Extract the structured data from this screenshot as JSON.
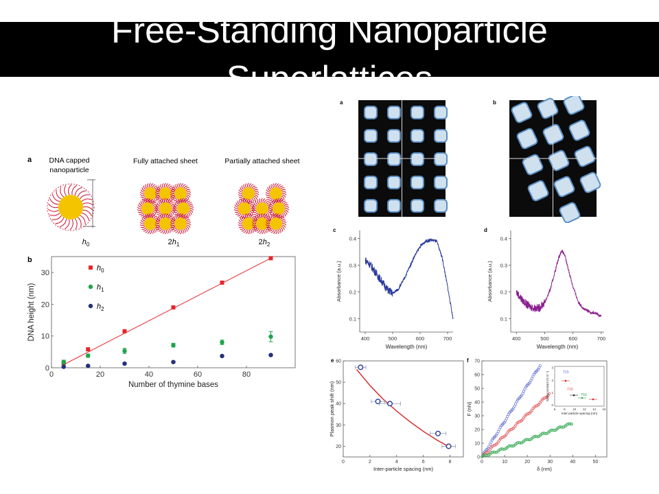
{
  "slide": {
    "title": "Free-Standing Nanoparticle\nSuperlattices"
  },
  "panel_a": {
    "letter": "a",
    "labels": [
      "DNA capped\nnanoparticle",
      "Fully attached sheet",
      "Partially attached sheet"
    ],
    "dims": [
      "h0",
      "2h1",
      "2h2"
    ]
  },
  "colors": {
    "gold": "#f5c400",
    "dna": "#c8102e",
    "red": "#e8262b",
    "green": "#1fa34a",
    "navy": "#24307a",
    "blue_spec": "#2b3a9a",
    "purple_spec": "#8a1f8f"
  },
  "chart_data": [
    {
      "panel": "b",
      "type": "scatter",
      "xlabel": "Number of thymine bases",
      "ylabel": "DNA height (nm)",
      "xlim": [
        0,
        100
      ],
      "ylim": [
        0,
        35
      ],
      "xticks": [
        0,
        20,
        40,
        60,
        80
      ],
      "yticks": [
        0,
        10,
        20,
        30
      ],
      "series": [
        {
          "name": "h0",
          "color": "#e8262b",
          "marker": "square",
          "x": [
            5,
            15,
            30,
            50,
            70,
            90
          ],
          "y": [
            1.5,
            5.8,
            11.5,
            19,
            26.8,
            34.5
          ],
          "fit": [
            [
              5,
              1.0
            ],
            [
              90,
              34.5
            ]
          ]
        },
        {
          "name": "h1",
          "color": "#1fa34a",
          "marker": "circle",
          "x": [
            5,
            15,
            30,
            50,
            70,
            90
          ],
          "y": [
            1.8,
            3.8,
            5.3,
            7.1,
            8.0,
            9.8
          ],
          "err": [
            0.6,
            0.5,
            0.8,
            0.6,
            0.7,
            1.6
          ]
        },
        {
          "name": "h2",
          "color": "#24307a",
          "marker": "circle",
          "x": [
            5,
            15,
            30,
            50,
            70,
            90
          ],
          "y": [
            0.3,
            0.6,
            1.3,
            1.8,
            3.7,
            4.0
          ],
          "err": [
            0.3,
            0.2,
            0.3,
            0.3,
            0.3,
            0.3
          ]
        }
      ]
    },
    {
      "panel": "c",
      "type": "line",
      "xlabel": "Wavelength (nm)",
      "ylabel": "Absorbance (a.u.)",
      "xlim": [
        380,
        720
      ],
      "ylim": [
        0.05,
        0.43
      ],
      "xticks": [
        400,
        500,
        600,
        700
      ],
      "yticks": [
        0.1,
        0.2,
        0.3,
        0.4
      ],
      "series": [
        {
          "color": "#2b3a9a",
          "x": [
            400,
            420,
            440,
            460,
            480,
            500,
            520,
            540,
            560,
            580,
            600,
            620,
            640,
            660,
            680,
            700,
            720
          ],
          "y": [
            0.32,
            0.3,
            0.27,
            0.24,
            0.21,
            0.195,
            0.21,
            0.245,
            0.29,
            0.335,
            0.37,
            0.39,
            0.395,
            0.39,
            0.33,
            0.22,
            0.1
          ]
        }
      ]
    },
    {
      "panel": "d",
      "type": "line",
      "xlabel": "Wavelength (nm)",
      "ylabel": "Absorbance (a.u.)",
      "xlim": [
        380,
        710
      ],
      "ylim": [
        0.05,
        0.43
      ],
      "xticks": [
        400,
        500,
        600,
        700
      ],
      "yticks": [
        0.1,
        0.2,
        0.3,
        0.4
      ],
      "series": [
        {
          "color": "#8a1f8f",
          "x": [
            400,
            420,
            440,
            460,
            480,
            500,
            520,
            540,
            550,
            560,
            570,
            580,
            600,
            620,
            640,
            660,
            680,
            700
          ],
          "y": [
            0.2,
            0.17,
            0.15,
            0.14,
            0.14,
            0.16,
            0.21,
            0.29,
            0.33,
            0.355,
            0.34,
            0.3,
            0.22,
            0.16,
            0.135,
            0.125,
            0.12,
            0.11
          ]
        }
      ]
    },
    {
      "panel": "e",
      "type": "scatter",
      "xlabel": "Inter-particle spacing (nm)",
      "ylabel": "Plasmon peak shift (nm)",
      "xlim": [
        0,
        9
      ],
      "ylim": [
        15,
        60
      ],
      "xticks": [
        0,
        2,
        4,
        6,
        8
      ],
      "yticks": [
        20,
        30,
        40,
        50,
        60
      ],
      "series": [
        {
          "color": "#2b3a9a",
          "x": [
            1.3,
            2.6,
            3.5,
            7.1,
            7.9
          ],
          "y": [
            57,
            41,
            40,
            26,
            20
          ],
          "xerr": [
            0.4,
            0.5,
            0.8,
            0.6,
            0.5
          ],
          "fit_x": [
            1.0,
            2.0,
            3.0,
            4.0,
            5.0,
            6.0,
            7.0,
            8.0
          ],
          "fit_y": [
            56,
            48.5,
            42,
            36.5,
            31.5,
            27,
            23,
            19.5
          ]
        }
      ]
    },
    {
      "panel": "f",
      "type": "scatter",
      "xlabel": "δ (nm)",
      "ylabel": "F (nN)",
      "xlim": [
        0,
        55
      ],
      "ylim": [
        0,
        70
      ],
      "xticks": [
        0,
        10,
        20,
        30,
        40,
        50
      ],
      "yticks": [
        0,
        10,
        20,
        30,
        40,
        50,
        60,
        70
      ],
      "series": [
        {
          "name": "T15",
          "color": "#5566cc",
          "slope": 2.6,
          "xmax": 26
        },
        {
          "name": "T30",
          "color": "#e05555",
          "slope": 1.55,
          "xmax": 30
        },
        {
          "name": "T50",
          "color": "#2ea84e",
          "slope": 0.62,
          "xmax": 40
        }
      ],
      "inset": {
        "xlabel": "Inter-particle spacing (nm)",
        "ylabel": "Spring constant (N m⁻¹)",
        "xticks": [
          6,
          8,
          10,
          12,
          14,
          16
        ],
        "yticks": [
          0,
          1,
          2,
          3
        ],
        "labels": [
          "T15",
          "T30",
          "T50"
        ]
      }
    }
  ],
  "panel_letters": {
    "a2": "a",
    "b2": "b",
    "c": "c",
    "d": "d",
    "e": "e",
    "f": "f",
    "b": "b"
  }
}
